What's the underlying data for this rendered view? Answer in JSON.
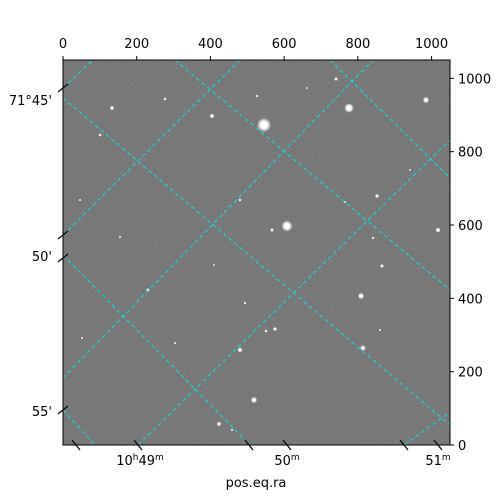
{
  "figure": {
    "xlabel": "pos.eq.ra",
    "pixel_axis_top": {
      "ticks": [
        0,
        200,
        400,
        600,
        800,
        1000
      ],
      "range": [
        0,
        1050
      ]
    },
    "pixel_axis_right": {
      "ticks": [
        0,
        200,
        400,
        600,
        800,
        1000
      ],
      "range": [
        0,
        1050
      ]
    },
    "ra_axis_bottom": {
      "labels": [
        {
          "hours": "10",
          "minutes": "49",
          "h_sym": "h",
          "m_sym": "m"
        },
        {
          "hours": "",
          "minutes": "50",
          "h_sym": "",
          "m_sym": "m"
        },
        {
          "hours": "",
          "minutes": "51",
          "h_sym": "",
          "m_sym": "m"
        }
      ]
    },
    "dec_axis_left": {
      "labels": [
        "71°45'",
        "50'",
        "55'"
      ]
    },
    "colors": {
      "sky_background": "#6f6f6f",
      "grid_lines": "#00e5e5",
      "stars": "#ffffff"
    },
    "grid_style": "dashed"
  }
}
